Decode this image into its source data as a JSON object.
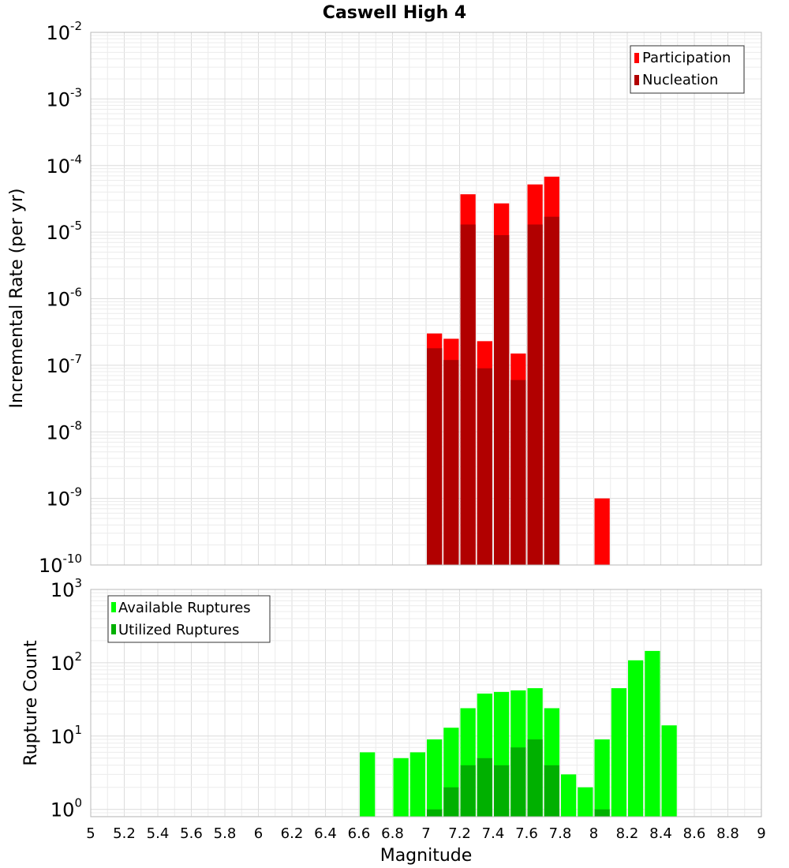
{
  "title": "Caswell High 4",
  "xlabel": "Magnitude",
  "x_ticks": [
    "5",
    "5.2",
    "5.4",
    "5.6",
    "5.8",
    "6",
    "6.2",
    "6.4",
    "6.6",
    "6.8",
    "7",
    "7.2",
    "7.4",
    "7.6",
    "7.8",
    "8",
    "8.2",
    "8.4",
    "8.6",
    "8.8",
    "9"
  ],
  "colors": {
    "participation": "#ff0000",
    "nucleation": "#b10000",
    "available": "#00ff00",
    "utilized": "#00b000"
  },
  "chart_data": [
    {
      "type": "bar",
      "scale": "log",
      "ylabel": "Incremental Rate (per yr)",
      "xlim": [
        5,
        9
      ],
      "ylim_exponents": [
        -10,
        -2
      ],
      "y_tick_labels": [
        {
          "base": "10",
          "exp": "-2"
        },
        {
          "base": "10",
          "exp": "-3"
        },
        {
          "base": "10",
          "exp": "-4"
        },
        {
          "base": "10",
          "exp": "-5"
        },
        {
          "base": "10",
          "exp": "-6"
        },
        {
          "base": "10",
          "exp": "-7"
        },
        {
          "base": "10",
          "exp": "-8"
        },
        {
          "base": "10",
          "exp": "-9"
        },
        {
          "base": "10",
          "exp": "-10"
        }
      ],
      "legend": {
        "position": "top-right",
        "entries": [
          "Participation",
          "Nucleation"
        ]
      },
      "x": [
        7.05,
        7.15,
        7.25,
        7.35,
        7.45,
        7.55,
        7.65,
        7.75,
        8.05
      ],
      "series": [
        {
          "name": "Participation",
          "values": [
            3e-07,
            2.5e-07,
            3.7e-05,
            2.3e-07,
            2.7e-05,
            1.5e-07,
            5.2e-05,
            6.8e-05,
            1e-09
          ]
        },
        {
          "name": "Nucleation",
          "values": [
            1.8e-07,
            1.2e-07,
            1.3e-05,
            9e-08,
            9e-06,
            6e-08,
            1.3e-05,
            1.7e-05,
            null
          ]
        }
      ]
    },
    {
      "type": "bar",
      "scale": "log",
      "ylabel": "Rupture Count",
      "xlim": [
        5,
        9
      ],
      "ylim_exponents": [
        -0.1,
        3
      ],
      "y_tick_labels": [
        {
          "base": "10",
          "exp": "3"
        },
        {
          "base": "10",
          "exp": "2"
        },
        {
          "base": "10",
          "exp": "1"
        },
        {
          "base": "10",
          "exp": "0"
        }
      ],
      "legend": {
        "position": "top-left",
        "entries": [
          "Available Ruptures",
          "Utilized Ruptures"
        ]
      },
      "x": [
        6.65,
        6.85,
        6.95,
        7.05,
        7.15,
        7.25,
        7.35,
        7.45,
        7.55,
        7.65,
        7.75,
        7.85,
        7.95,
        8.05,
        8.15,
        8.25,
        8.35,
        8.45
      ],
      "series": [
        {
          "name": "Available Ruptures",
          "values": [
            6,
            5,
            6,
            9,
            13,
            24,
            38,
            40,
            42,
            45,
            24,
            3,
            2,
            9,
            45,
            108,
            145,
            14
          ]
        },
        {
          "name": "Utilized Ruptures",
          "values": [
            null,
            null,
            null,
            1,
            2,
            4,
            5,
            4,
            7,
            9,
            4,
            null,
            null,
            1,
            null,
            null,
            null,
            null
          ]
        }
      ]
    }
  ]
}
